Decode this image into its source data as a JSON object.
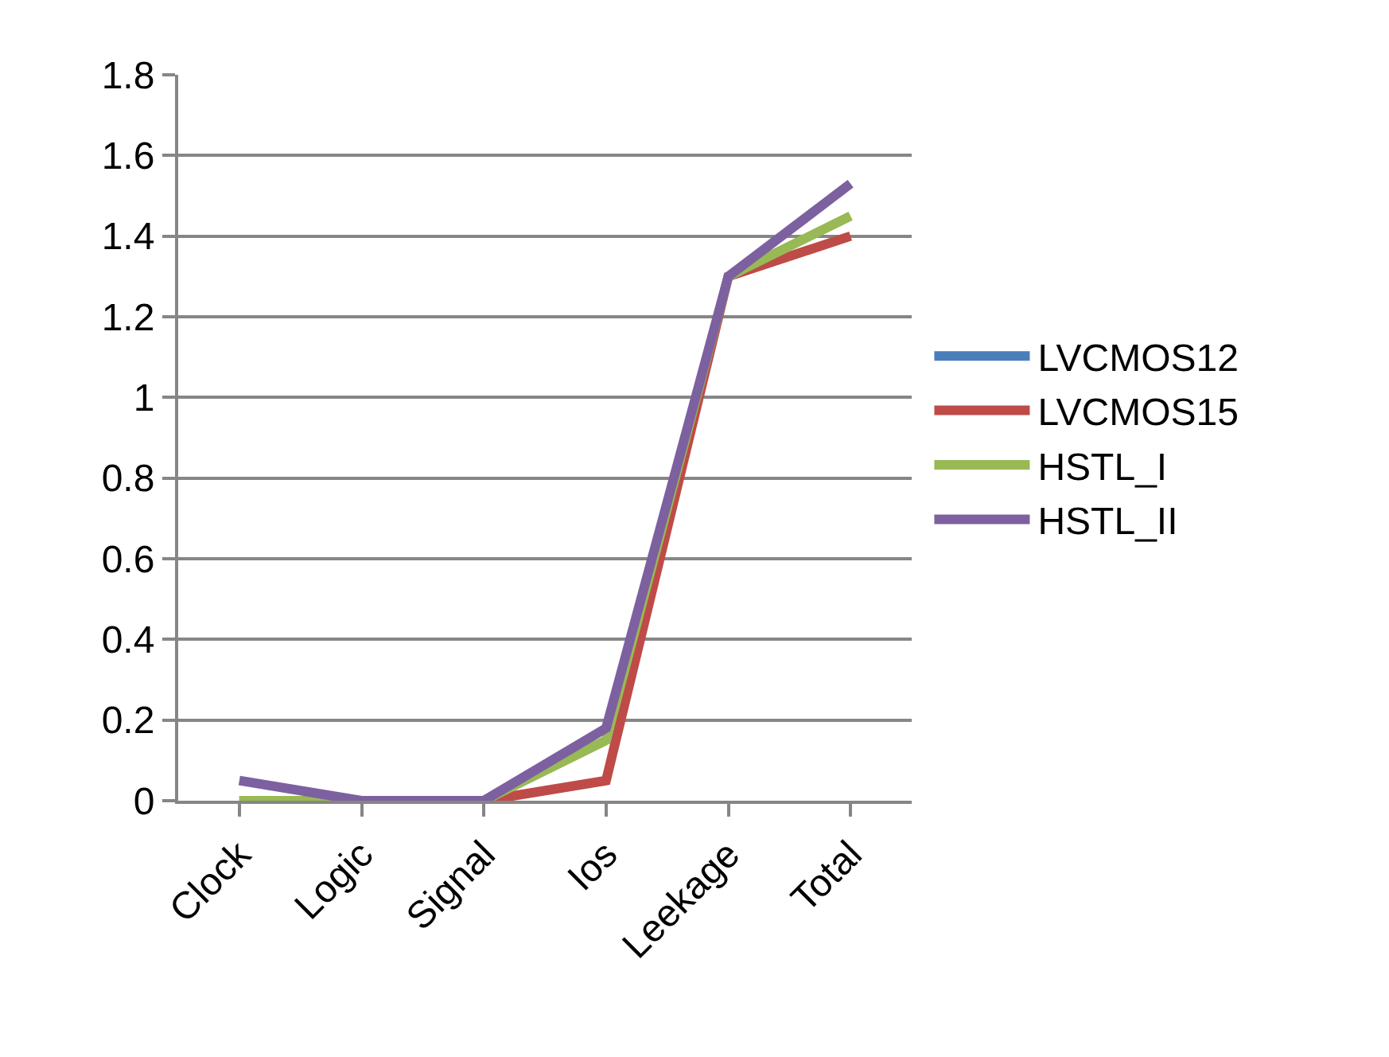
{
  "chart_data": {
    "type": "line",
    "categories": [
      "Clock",
      "Logic",
      "Signal",
      "Ios",
      "Leekage",
      "Total"
    ],
    "series": [
      {
        "name": "LVCMOS12",
        "color": "#4a7ebb",
        "values": [
          null,
          null,
          null,
          null,
          null,
          null
        ]
      },
      {
        "name": "LVCMOS15",
        "color": "#be4b48",
        "values": [
          0,
          0,
          0,
          0.05,
          1.3,
          1.4
        ]
      },
      {
        "name": "HSTL_I",
        "color": "#98b954",
        "values": [
          0,
          0,
          0,
          0.15,
          1.3,
          1.45
        ]
      },
      {
        "name": "HSTL_II",
        "color": "#7d60a0",
        "values": [
          0.05,
          0,
          0,
          0.18,
          1.3,
          1.53
        ]
      }
    ],
    "ylim": [
      0,
      1.8
    ],
    "yticks": [
      0,
      0.2,
      0.4,
      0.6,
      0.8,
      1,
      1.2,
      1.4,
      1.6,
      1.8
    ],
    "grid": "y",
    "legend": "right",
    "marker": "none",
    "line_style": "solid"
  }
}
